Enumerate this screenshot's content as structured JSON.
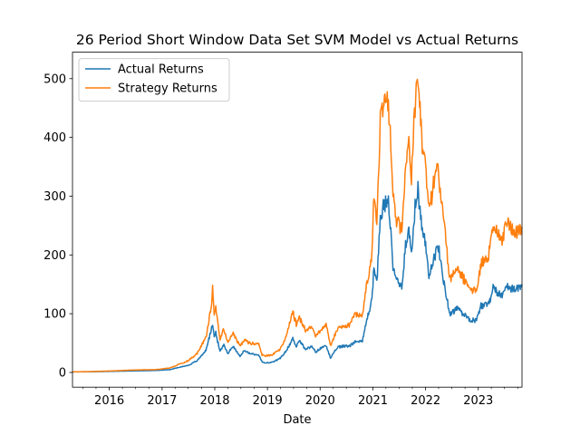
{
  "chart_data": {
    "type": "line",
    "title": "26 Period Short Window Data Set SVM Model vs Actual Returns",
    "xlabel": "Date",
    "ylabel": "",
    "xlim": [
      "2015-04-21",
      "2023-10-31"
    ],
    "ylim": [
      -25,
      545
    ],
    "x_ticks": [
      "2016",
      "2017",
      "2018",
      "2019",
      "2020",
      "2021",
      "2022",
      "2023"
    ],
    "y_ticks": [
      0,
      100,
      200,
      300,
      400,
      500
    ],
    "grid": false,
    "legend_position": "upper-left",
    "series": [
      {
        "name": "Actual Returns",
        "color": "#1f77b4",
        "points": [
          [
            "2015-04-21",
            1
          ],
          [
            "2015-09-01",
            1.2
          ],
          [
            "2016-01-01",
            1.8
          ],
          [
            "2016-06-01",
            2.6
          ],
          [
            "2016-12-01",
            3.5
          ],
          [
            "2017-03-01",
            5
          ],
          [
            "2017-05-01",
            9
          ],
          [
            "2017-07-01",
            12
          ],
          [
            "2017-09-01",
            20
          ],
          [
            "2017-11-01",
            38
          ],
          [
            "2017-12-10",
            75
          ],
          [
            "2017-12-17",
            85
          ],
          [
            "2017-12-28",
            60
          ],
          [
            "2018-01-08",
            68
          ],
          [
            "2018-02-06",
            35
          ],
          [
            "2018-03-05",
            48
          ],
          [
            "2018-04-01",
            32
          ],
          [
            "2018-05-05",
            45
          ],
          [
            "2018-06-25",
            28
          ],
          [
            "2018-07-25",
            37
          ],
          [
            "2018-09-01",
            32
          ],
          [
            "2018-11-01",
            30
          ],
          [
            "2018-11-25",
            18
          ],
          [
            "2018-12-15",
            16
          ],
          [
            "2019-02-01",
            17
          ],
          [
            "2019-04-01",
            24
          ],
          [
            "2019-05-15",
            38
          ],
          [
            "2019-06-26",
            58
          ],
          [
            "2019-07-20",
            45
          ],
          [
            "2019-08-10",
            55
          ],
          [
            "2019-09-25",
            38
          ],
          [
            "2019-10-28",
            45
          ],
          [
            "2019-12-01",
            35
          ],
          [
            "2020-02-12",
            47
          ],
          [
            "2020-03-13",
            24
          ],
          [
            "2020-05-01",
            43
          ],
          [
            "2020-07-25",
            46
          ],
          [
            "2020-09-01",
            53
          ],
          [
            "2020-10-20",
            53
          ],
          [
            "2020-11-20",
            90
          ],
          [
            "2020-12-25",
            125
          ],
          [
            "2021-01-08",
            180
          ],
          [
            "2021-01-28",
            150
          ],
          [
            "2021-02-21",
            265
          ],
          [
            "2021-03-14",
            280
          ],
          [
            "2021-04-14",
            295
          ],
          [
            "2021-05-01",
            255
          ],
          [
            "2021-05-20",
            175
          ],
          [
            "2021-06-22",
            155
          ],
          [
            "2021-07-20",
            145
          ],
          [
            "2021-08-15",
            220
          ],
          [
            "2021-09-07",
            240
          ],
          [
            "2021-09-25",
            200
          ],
          [
            "2021-10-20",
            280
          ],
          [
            "2021-11-09",
            315
          ],
          [
            "2021-12-05",
            245
          ],
          [
            "2022-01-01",
            215
          ],
          [
            "2022-01-24",
            170
          ],
          [
            "2022-03-28",
            215
          ],
          [
            "2022-05-10",
            150
          ],
          [
            "2022-06-18",
            100
          ],
          [
            "2022-08-10",
            110
          ],
          [
            "2022-09-20",
            100
          ],
          [
            "2022-11-10",
            90
          ],
          [
            "2022-12-20",
            88
          ],
          [
            "2023-01-20",
            115
          ],
          [
            "2023-03-10",
            115
          ],
          [
            "2023-04-14",
            143
          ],
          [
            "2023-06-15",
            130
          ],
          [
            "2023-07-15",
            150
          ],
          [
            "2023-09-10",
            140
          ],
          [
            "2023-10-31",
            150
          ]
        ]
      },
      {
        "name": "Strategy Returns",
        "color": "#ff7f0e",
        "points": [
          [
            "2015-04-21",
            1
          ],
          [
            "2015-09-01",
            1.5
          ],
          [
            "2016-01-01",
            2.5
          ],
          [
            "2016-06-01",
            4
          ],
          [
            "2016-12-01",
            5
          ],
          [
            "2017-03-01",
            8
          ],
          [
            "2017-05-01",
            14
          ],
          [
            "2017-07-01",
            20
          ],
          [
            "2017-09-01",
            32
          ],
          [
            "2017-11-01",
            60
          ],
          [
            "2017-12-10",
            115
          ],
          [
            "2017-12-17",
            145
          ],
          [
            "2017-12-28",
            100
          ],
          [
            "2018-01-08",
            110
          ],
          [
            "2018-02-06",
            55
          ],
          [
            "2018-03-05",
            75
          ],
          [
            "2018-04-01",
            50
          ],
          [
            "2018-05-05",
            68
          ],
          [
            "2018-06-25",
            45
          ],
          [
            "2018-07-25",
            55
          ],
          [
            "2018-09-01",
            50
          ],
          [
            "2018-11-01",
            48
          ],
          [
            "2018-11-25",
            30
          ],
          [
            "2018-12-15",
            28
          ],
          [
            "2019-02-01",
            30
          ],
          [
            "2019-04-01",
            40
          ],
          [
            "2019-05-15",
            65
          ],
          [
            "2019-06-26",
            105
          ],
          [
            "2019-07-20",
            80
          ],
          [
            "2019-08-10",
            95
          ],
          [
            "2019-09-25",
            68
          ],
          [
            "2019-10-28",
            80
          ],
          [
            "2019-12-01",
            62
          ],
          [
            "2020-02-12",
            82
          ],
          [
            "2020-03-13",
            45
          ],
          [
            "2020-05-01",
            75
          ],
          [
            "2020-07-25",
            80
          ],
          [
            "2020-09-01",
            100
          ],
          [
            "2020-10-20",
            95
          ],
          [
            "2020-11-20",
            150
          ],
          [
            "2020-12-25",
            200
          ],
          [
            "2021-01-08",
            300
          ],
          [
            "2021-01-28",
            250
          ],
          [
            "2021-02-21",
            430
          ],
          [
            "2021-03-14",
            450
          ],
          [
            "2021-04-14",
            470
          ],
          [
            "2021-05-01",
            400
          ],
          [
            "2021-05-20",
            290
          ],
          [
            "2021-06-22",
            255
          ],
          [
            "2021-07-20",
            240
          ],
          [
            "2021-08-15",
            360
          ],
          [
            "2021-09-07",
            390
          ],
          [
            "2021-09-25",
            330
          ],
          [
            "2021-10-20",
            460
          ],
          [
            "2021-11-09",
            518
          ],
          [
            "2021-12-05",
            400
          ],
          [
            "2022-01-01",
            350
          ],
          [
            "2022-01-24",
            280
          ],
          [
            "2022-03-28",
            355
          ],
          [
            "2022-05-10",
            250
          ],
          [
            "2022-06-18",
            160
          ],
          [
            "2022-08-10",
            180
          ],
          [
            "2022-09-20",
            160
          ],
          [
            "2022-11-10",
            140
          ],
          [
            "2022-12-20",
            138
          ],
          [
            "2023-01-20",
            185
          ],
          [
            "2023-03-10",
            195
          ],
          [
            "2023-04-14",
            245
          ],
          [
            "2023-06-15",
            225
          ],
          [
            "2023-07-15",
            258
          ],
          [
            "2023-09-10",
            235
          ],
          [
            "2023-10-31",
            248
          ]
        ]
      }
    ]
  }
}
